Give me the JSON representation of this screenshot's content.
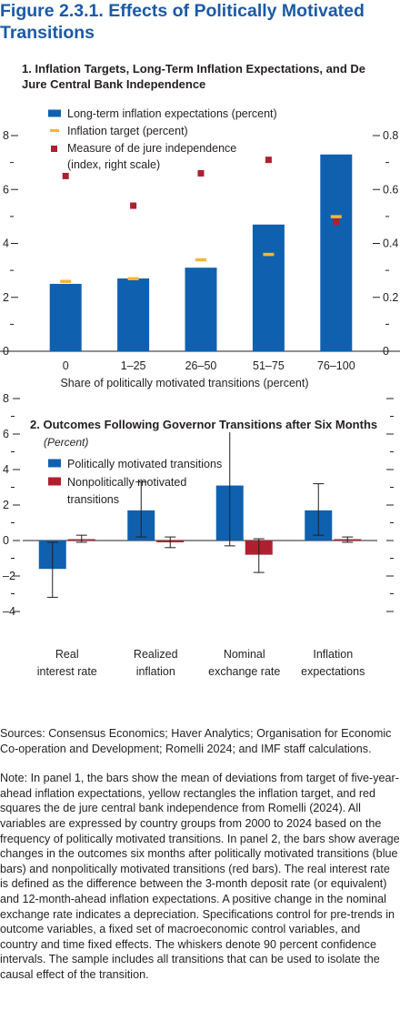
{
  "figure_title": "Figure 2.3.1. Effects of Politically Motivated Transitions",
  "colors": {
    "title": "#1a5aa6",
    "blue": "#1060b0",
    "yellow": "#f5b731",
    "red": "#b01f2f",
    "axis": "#231f20"
  },
  "chart_data": [
    {
      "type": "bar",
      "title": "1. Inflation Targets, Long-Term Inflation Expectations, and De Jure Central Bank Independence",
      "xlabel": "Share of politically motivated transitions (percent)",
      "categories": [
        "0",
        "1–25",
        "26–50",
        "51–75",
        "76–100"
      ],
      "left_axis": {
        "ylim": [
          0,
          8
        ],
        "ticks": [
          "0",
          "2",
          "4",
          "6",
          "8"
        ],
        "minor": [
          1,
          3,
          5,
          7
        ]
      },
      "right_axis": {
        "ylim": [
          0,
          0.8
        ],
        "ticks": [
          "0",
          "0.2",
          "0.4",
          "0.6",
          "0.8"
        ],
        "minor": [
          0.1,
          0.3,
          0.5,
          0.7
        ]
      },
      "legend_placement": "top-left",
      "legend": [
        "Long-term inflation expectations (percent)",
        "Inflation target (percent)",
        "Measure of de jure independence",
        "(index, right scale)"
      ],
      "series": [
        {
          "name": "Long-term inflation expectations (percent)",
          "mark": "bar",
          "axis": "left",
          "values": [
            2.5,
            2.7,
            3.1,
            4.7,
            7.3
          ]
        },
        {
          "name": "Inflation target (percent)",
          "mark": "dash",
          "axis": "left",
          "values": [
            2.6,
            2.7,
            3.4,
            3.6,
            5.0
          ]
        },
        {
          "name": "Measure of de jure independence (index, right scale)",
          "mark": "square",
          "axis": "right",
          "values": [
            0.65,
            0.54,
            0.66,
            0.71,
            0.48
          ]
        }
      ]
    },
    {
      "type": "bar",
      "title": "2. Outcomes Following Governor Transitions after Six Months",
      "subtitle": "(Percent)",
      "categories": [
        [
          "Real",
          "interest rate"
        ],
        [
          "Realized",
          "inflation"
        ],
        [
          "Nominal",
          "exchange rate"
        ],
        [
          "Inflation",
          "expectations"
        ]
      ],
      "ylim": [
        -4,
        8
      ],
      "yticks": [
        "–4",
        "–2",
        "0",
        "2",
        "4",
        "6",
        "8"
      ],
      "tick_values": [
        -4,
        -2,
        0,
        2,
        4,
        6,
        8
      ],
      "minor": [
        -3,
        -1,
        1,
        3,
        5,
        7
      ],
      "legend_placement": "top-left",
      "legend": [
        "Politically motivated transitions",
        "Nonpolitically motivated",
        "transitions"
      ],
      "series": [
        {
          "name": "Politically motivated transitions",
          "values": [
            -1.6,
            1.7,
            3.1,
            1.7
          ],
          "ci_low": [
            -3.2,
            0.2,
            -0.3,
            0.3
          ],
          "ci_high": [
            -0.1,
            3.3,
            6.5,
            3.2
          ]
        },
        {
          "name": "Nonpolitically motivated transitions",
          "values": [
            0.05,
            -0.1,
            -0.8,
            0.0
          ],
          "ci_low": [
            -0.1,
            -0.4,
            -1.8,
            -0.1
          ],
          "ci_high": [
            0.3,
            0.2,
            0.1,
            0.2
          ]
        }
      ]
    }
  ],
  "sources": "Sources: Consensus Economics; Haver Analytics; Organisation for Economic Co-operation and Development; Romelli 2024; and IMF staff calculations.",
  "note": "Note: In panel 1, the bars show the mean of deviations from target of five-year-ahead inflation expectations, yellow rectangles the inflation target, and red squares the de jure central bank independence from Romelli (2024). All variables are expressed by country groups from 2000 to 2024 based on the frequency of politically motivated transitions. In panel 2, the bars show average changes in the outcomes six months after politically motivated transitions (blue bars) and nonpolitically motivated transitions (red bars). The real interest rate is defined as the difference between the 3-month deposit rate (or equivalent) and 12-month-ahead inflation expectations. A positive change in the nominal exchange rate indicates a depreciation. Specifications control for pre-trends in outcome variables, a fixed set of macroeconomic control variables, and country and time fixed effects. The whiskers denote 90 percent confidence intervals. The sample includes all transitions that can be used to isolate the causal effect of the transition."
}
